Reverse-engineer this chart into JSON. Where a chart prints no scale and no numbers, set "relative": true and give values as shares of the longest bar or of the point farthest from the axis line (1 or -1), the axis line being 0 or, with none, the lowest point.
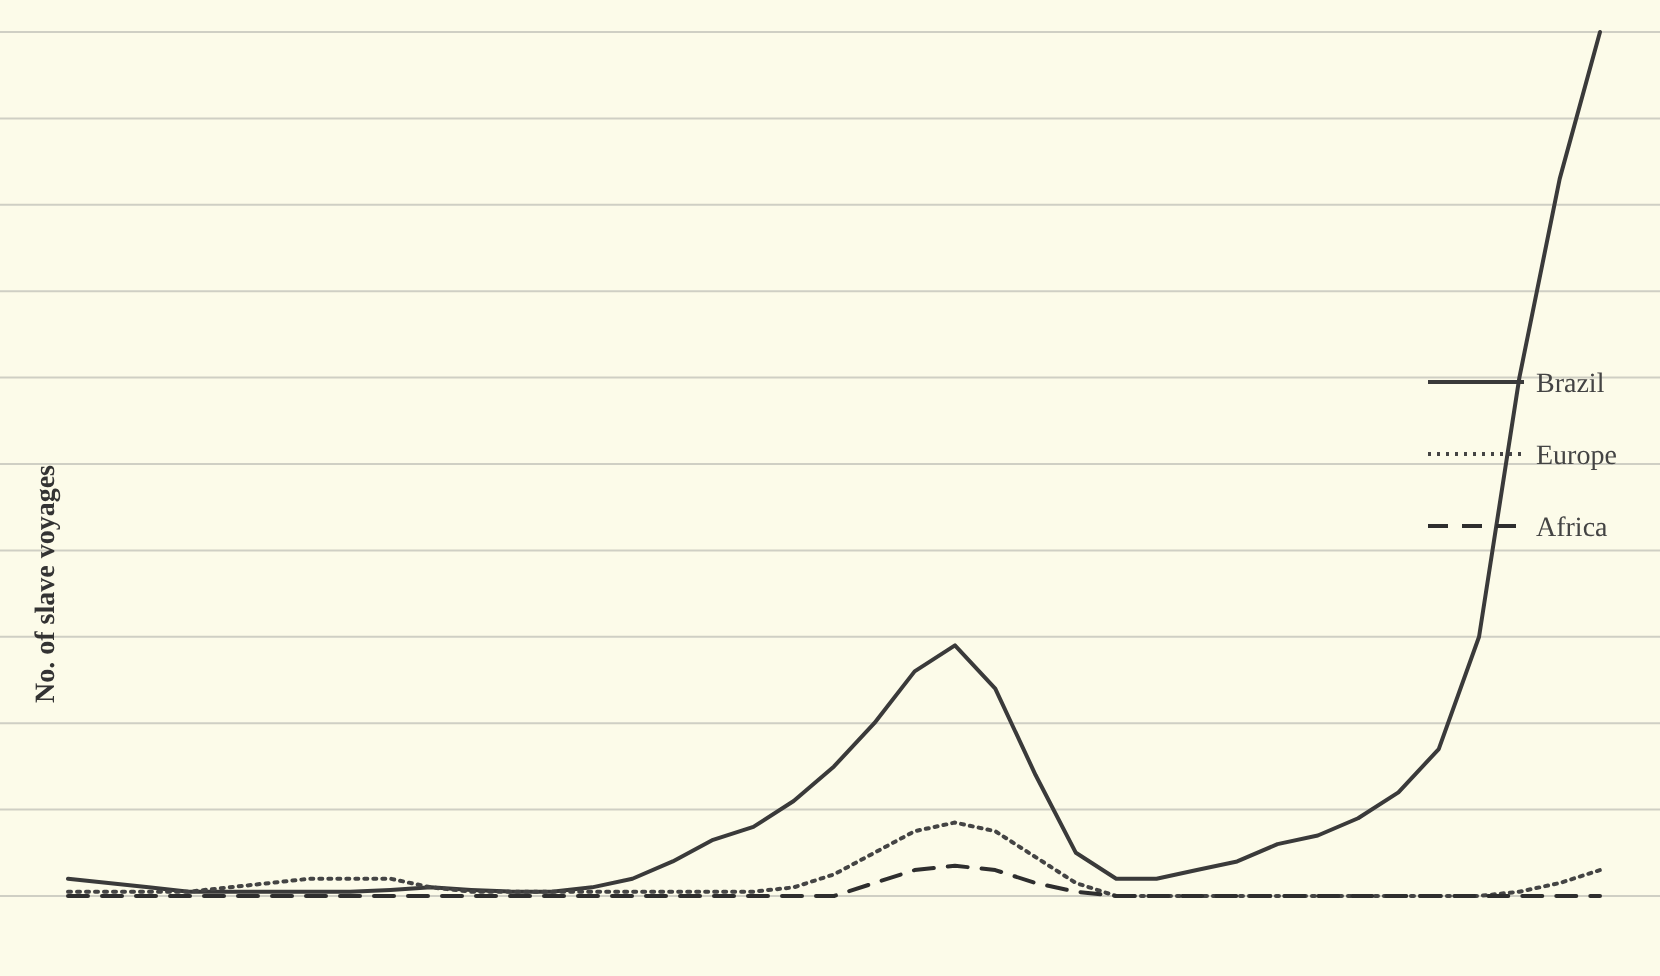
{
  "chart_data": {
    "type": "line",
    "ylabel": "No. of slave voyages",
    "relative": true,
    "grid": "y",
    "legend": "right",
    "categories": [
      null,
      null,
      null,
      null,
      null,
      null,
      null,
      null,
      null,
      null,
      null,
      null,
      null,
      null,
      null,
      null,
      null,
      null,
      null,
      null,
      null,
      null,
      null,
      null,
      null,
      null,
      null,
      null,
      null,
      null,
      null,
      null,
      null,
      null,
      null,
      null,
      null,
      null,
      null
    ],
    "series": [
      {
        "name": "Brazil",
        "color": "#3a3a3a",
        "line_style": "solid",
        "values": [
          0.02,
          0.015,
          0.01,
          0.005,
          0.005,
          0.005,
          0.005,
          0.005,
          0.007,
          0.01,
          0.007,
          0.005,
          0.005,
          0.01,
          0.02,
          0.04,
          0.065,
          0.08,
          0.11,
          0.15,
          0.2,
          0.26,
          0.29,
          0.24,
          0.14,
          0.05,
          0.02,
          0.02,
          0.03,
          0.04,
          0.06,
          0.07,
          0.09,
          0.12,
          0.17,
          0.3,
          0.6,
          0.83,
          1.0
        ]
      },
      {
        "name": "Europe",
        "color": "#444444",
        "line_style": "dotted",
        "values": [
          0.005,
          0.005,
          0.005,
          0.005,
          0.01,
          0.015,
          0.02,
          0.02,
          0.02,
          0.01,
          0.005,
          0.005,
          0.005,
          0.005,
          0.005,
          0.005,
          0.005,
          0.005,
          0.01,
          0.025,
          0.05,
          0.075,
          0.085,
          0.075,
          0.045,
          0.015,
          0,
          0,
          0,
          0,
          0,
          0,
          0,
          0,
          0,
          0,
          0.005,
          0.015,
          0.03
        ]
      },
      {
        "name": "Africa",
        "color": "#2e2e2e",
        "line_style": "dashed",
        "values": [
          0,
          0,
          0,
          0,
          0,
          0,
          0,
          0,
          0,
          0,
          0,
          0,
          0,
          0,
          0,
          0,
          0,
          0,
          0,
          0,
          0.015,
          0.03,
          0.035,
          0.03,
          0.015,
          0.005,
          0,
          0,
          0,
          0,
          0,
          0,
          0,
          0,
          0,
          0,
          0,
          0,
          0
        ]
      }
    ]
  }
}
